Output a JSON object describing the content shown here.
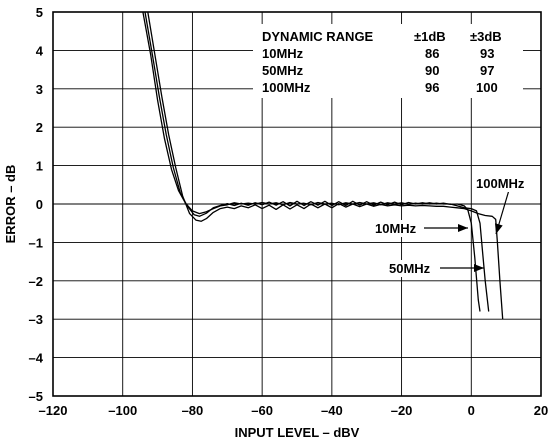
{
  "chart_data": {
    "type": "line",
    "xlabel": "INPUT LEVEL – dBV",
    "ylabel": "ERROR – dB",
    "xlim": [
      -120,
      20
    ],
    "ylim": [
      -5,
      5
    ],
    "x_ticks": [
      "–120",
      "–100",
      "–80",
      "–60",
      "–40",
      "–20",
      "0",
      "20"
    ],
    "y_ticks": [
      "5",
      "4",
      "3",
      "2",
      "1",
      "0",
      "–1",
      "–2",
      "–3",
      "–4",
      "–5"
    ],
    "grid": true,
    "table": {
      "header": [
        "DYNAMIC RANGE",
        "±1dB",
        "±3dB"
      ],
      "rows": [
        [
          "10MHz",
          "86",
          "93"
        ],
        [
          "50MHz",
          "90",
          "97"
        ],
        [
          "100MHz",
          "96",
          "100"
        ]
      ]
    },
    "annotations": [
      "100MHz",
      "10MHz",
      "50MHz"
    ],
    "series": [
      {
        "points": [
          [
            -94.2,
            5
          ],
          [
            -92,
            3.9
          ],
          [
            -90,
            2.7
          ],
          [
            -88,
            1.7
          ],
          [
            -86,
            0.9
          ],
          [
            -84,
            0.35
          ],
          [
            -82,
            0.02
          ],
          [
            -80,
            -0.18
          ],
          [
            -78,
            -0.25
          ],
          [
            -76,
            -0.2
          ],
          [
            -74,
            -0.12
          ],
          [
            -72,
            -0.05
          ],
          [
            -70,
            -0.02
          ],
          [
            -68,
            0.03
          ],
          [
            -66,
            0
          ],
          [
            -64,
            0.02
          ],
          [
            -62,
            0
          ],
          [
            -60,
            0.04
          ],
          [
            -58,
            0
          ],
          [
            -56,
            0.03
          ],
          [
            -54,
            -0.02
          ],
          [
            -52,
            0.04
          ],
          [
            -50,
            0
          ],
          [
            -48,
            0.02
          ],
          [
            -46,
            -0.02
          ],
          [
            -44,
            0.04
          ],
          [
            -42,
            0
          ],
          [
            -40,
            0.02
          ],
          [
            -38,
            -0.02
          ],
          [
            -36,
            0.03
          ],
          [
            -34,
            0
          ],
          [
            -32,
            0.04
          ],
          [
            -30,
            0
          ],
          [
            -28,
            0.03
          ],
          [
            -26,
            -0.02
          ],
          [
            -24,
            0.03
          ],
          [
            -22,
            0
          ],
          [
            -20,
            0.03
          ],
          [
            -18,
            -0.01
          ],
          [
            -16,
            0.02
          ],
          [
            -14,
            0
          ],
          [
            -12,
            0.03
          ],
          [
            -10,
            0
          ],
          [
            -8,
            0.02
          ],
          [
            -6,
            -0.01
          ],
          [
            -4,
            0
          ],
          [
            -2,
            -0.05
          ],
          [
            -1,
            -0.15
          ],
          [
            0,
            -0.5
          ],
          [
            1,
            -1.4
          ],
          [
            2,
            -2.5
          ],
          [
            2.5,
            -2.8
          ]
        ]
      },
      {
        "points": [
          [
            -93.6,
            5
          ],
          [
            -91.5,
            3.9
          ],
          [
            -89.5,
            2.8
          ],
          [
            -87.5,
            1.8
          ],
          [
            -85.5,
            0.95
          ],
          [
            -83.5,
            0.3
          ],
          [
            -81.5,
            -0.05
          ],
          [
            -79.5,
            -0.28
          ],
          [
            -78,
            -0.32
          ],
          [
            -76,
            -0.24
          ],
          [
            -74,
            -0.1
          ],
          [
            -72,
            -0.04
          ],
          [
            -70,
            0.01
          ],
          [
            -68,
            -0.04
          ],
          [
            -66,
            0.02
          ],
          [
            -64,
            -0.03
          ],
          [
            -62,
            0.03
          ],
          [
            -60,
            -0.02
          ],
          [
            -58,
            0.05
          ],
          [
            -56,
            -0.03
          ],
          [
            -54,
            0.06
          ],
          [
            -52,
            -0.05
          ],
          [
            -50,
            0.07
          ],
          [
            -48,
            -0.04
          ],
          [
            -46,
            0.06
          ],
          [
            -44,
            -0.03
          ],
          [
            -42,
            0.07
          ],
          [
            -40,
            -0.04
          ],
          [
            -38,
            0.06
          ],
          [
            -36,
            -0.04
          ],
          [
            -34,
            0.07
          ],
          [
            -32,
            -0.03
          ],
          [
            -30,
            0.06
          ],
          [
            -28,
            -0.03
          ],
          [
            -26,
            0.05
          ],
          [
            -24,
            -0.02
          ],
          [
            -22,
            0.05
          ],
          [
            -20,
            -0.02
          ],
          [
            -18,
            0.04
          ],
          [
            -16,
            0
          ],
          [
            -14,
            0.03
          ],
          [
            -12,
            0
          ],
          [
            -10,
            0.02
          ],
          [
            -8,
            0
          ],
          [
            -6,
            0
          ],
          [
            -4,
            -0.05
          ],
          [
            -2,
            -0.1
          ],
          [
            0,
            -0.12
          ],
          [
            1.5,
            -0.18
          ],
          [
            2.5,
            -0.5
          ],
          [
            3.2,
            -1.2
          ],
          [
            4,
            -2
          ],
          [
            5,
            -2.8
          ]
        ]
      },
      {
        "points": [
          [
            -92.8,
            5
          ],
          [
            -90.8,
            3.9
          ],
          [
            -88.8,
            2.8
          ],
          [
            -86.8,
            1.8
          ],
          [
            -84.8,
            0.95
          ],
          [
            -82.8,
            0.2
          ],
          [
            -80.8,
            -0.25
          ],
          [
            -79,
            -0.42
          ],
          [
            -77.5,
            -0.45
          ],
          [
            -76,
            -0.38
          ],
          [
            -74,
            -0.22
          ],
          [
            -72,
            -0.12
          ],
          [
            -70,
            -0.08
          ],
          [
            -68,
            -0.12
          ],
          [
            -66,
            -0.05
          ],
          [
            -64,
            -0.1
          ],
          [
            -62,
            -0.02
          ],
          [
            -60,
            -0.12
          ],
          [
            -58,
            -0.03
          ],
          [
            -56,
            -0.14
          ],
          [
            -54,
            -0.02
          ],
          [
            -52,
            -0.13
          ],
          [
            -50,
            -0.02
          ],
          [
            -48,
            -0.12
          ],
          [
            -46,
            0
          ],
          [
            -44,
            -0.1
          ],
          [
            -42,
            0
          ],
          [
            -40,
            -0.1
          ],
          [
            -38,
            0.01
          ],
          [
            -36,
            -0.08
          ],
          [
            -34,
            0
          ],
          [
            -32,
            -0.07
          ],
          [
            -30,
            0
          ],
          [
            -28,
            -0.06
          ],
          [
            -26,
            -0.01
          ],
          [
            -24,
            -0.05
          ],
          [
            -22,
            -0.02
          ],
          [
            -20,
            -0.05
          ],
          [
            -18,
            -0.03
          ],
          [
            -16,
            -0.05
          ],
          [
            -14,
            -0.04
          ],
          [
            -12,
            -0.05
          ],
          [
            -10,
            -0.06
          ],
          [
            -8,
            -0.06
          ],
          [
            -6,
            -0.08
          ],
          [
            -4,
            -0.1
          ],
          [
            -2,
            -0.12
          ],
          [
            0,
            -0.18
          ],
          [
            2,
            -0.25
          ],
          [
            4,
            -0.3
          ],
          [
            6,
            -0.32
          ],
          [
            7,
            -0.4
          ],
          [
            7.5,
            -1
          ],
          [
            8.2,
            -2
          ],
          [
            9,
            -3
          ]
        ]
      }
    ]
  }
}
